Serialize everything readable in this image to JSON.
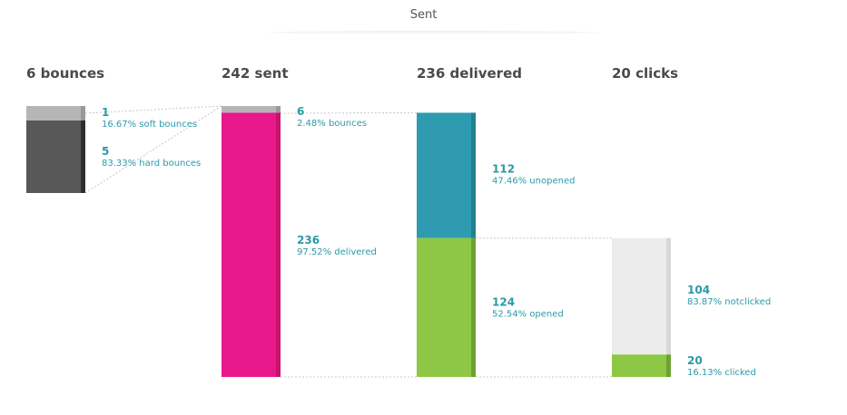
{
  "header": {
    "title": "Sent"
  },
  "columns": [
    {
      "heading": "6 bounces"
    },
    {
      "heading": "242 sent"
    },
    {
      "heading": "236 delivered"
    },
    {
      "heading": "20 clicks"
    }
  ],
  "chart_data": {
    "type": "bar",
    "title": "Sent",
    "stacks": [
      {
        "heading": "6 bounces",
        "total": 6,
        "segments": [
          {
            "key": "soft",
            "value": 1,
            "label": "16.67% soft bounces",
            "color": "#b5b5b5",
            "edge": "#999999"
          },
          {
            "key": "hard",
            "value": 5,
            "label": "83.33% hard bounces",
            "color": "#585858",
            "edge": "#2e2e2e"
          }
        ]
      },
      {
        "heading": "242 sent",
        "total": 242,
        "segments": [
          {
            "key": "bounces",
            "value": 6,
            "label": "2.48% bounces",
            "color": "#b5b5b5",
            "edge": "#999999"
          },
          {
            "key": "delivered",
            "value": 236,
            "label": "97.52% delivered",
            "color": "#e8188b",
            "edge": "#c5136f"
          }
        ]
      },
      {
        "heading": "236 delivered",
        "total": 236,
        "segments": [
          {
            "key": "unopened",
            "value": 112,
            "label": "47.46% unopened",
            "color": "#2e9bb0",
            "edge": "#24808f"
          },
          {
            "key": "opened",
            "value": 124,
            "label": "52.54% opened",
            "color": "#8dc745",
            "edge": "#6fa035"
          }
        ]
      },
      {
        "heading": "20 clicks",
        "total": 124,
        "segments": [
          {
            "key": "notclicked",
            "value": 104,
            "label": "83.87% notclicked",
            "color": "#ececec",
            "edge": "#d8d8d8"
          },
          {
            "key": "clicked",
            "value": 20,
            "label": "16.13% clicked",
            "color": "#8dc745",
            "edge": "#6fa035"
          }
        ]
      }
    ]
  }
}
